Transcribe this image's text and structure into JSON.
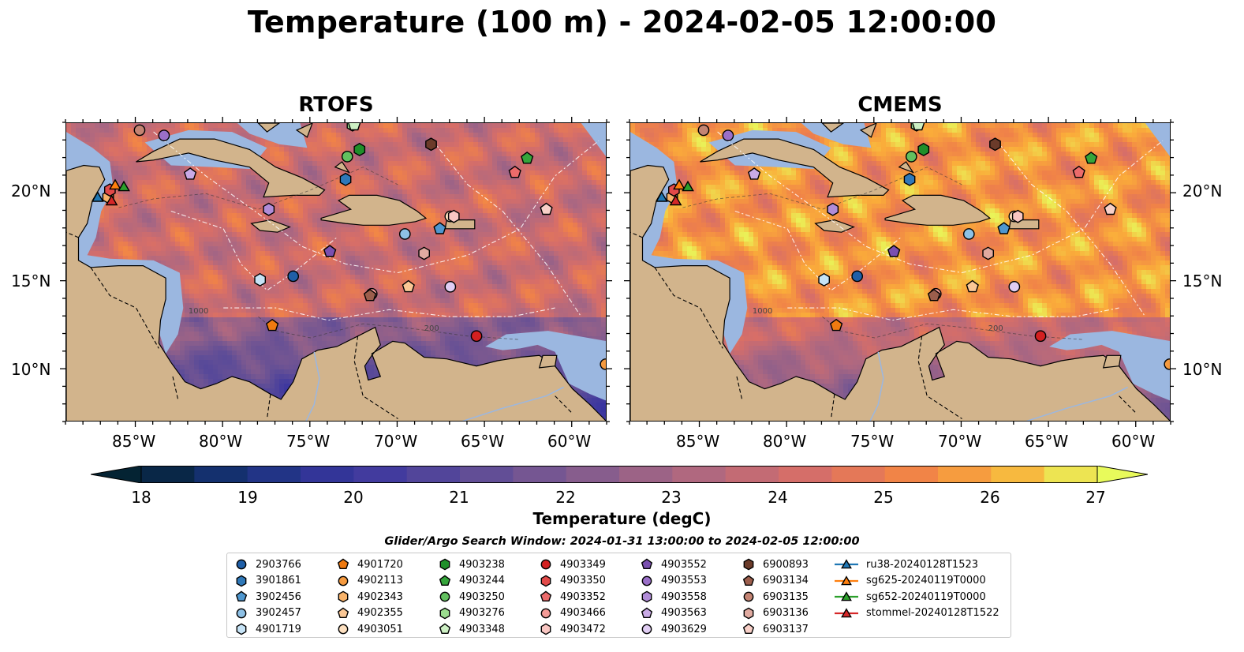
{
  "title": "Temperature (100 m) - 2024-02-05 12:00:00",
  "panels": [
    {
      "title": "RTOFS",
      "model": "rtofs"
    },
    {
      "title": "CMEMS",
      "model": "cmems"
    }
  ],
  "map": {
    "lon_range": [
      -89,
      -58
    ],
    "lat_range": [
      7,
      24
    ],
    "lat_ticks": [
      "20°N",
      "15°N",
      "10°N"
    ],
    "lon_ticks": [
      "85°W",
      "80°W",
      "75°W",
      "70°W",
      "65°W",
      "60°W"
    ],
    "land_color": "#d2b48c",
    "shelf_color": "#9bb7e0",
    "contour_labels": [
      "1000",
      "200"
    ]
  },
  "colorbar": {
    "label": "Temperature (degC)",
    "min": 18,
    "max": 27,
    "ticks": [
      "18",
      "19",
      "20",
      "21",
      "22",
      "23",
      "24",
      "25",
      "26",
      "27"
    ],
    "extend": "both",
    "colormap": "thermal"
  },
  "legend": {
    "title": "Glider/Argo Search Window: 2024-01-31 13:00:00 to 2024-02-05 12:00:00",
    "entries": [
      {
        "label": "2903766",
        "marker": "circle",
        "color": "#1f5fa8"
      },
      {
        "label": "3901861",
        "marker": "hexagon",
        "color": "#2f78b8"
      },
      {
        "label": "3902456",
        "marker": "pentagon",
        "color": "#4f97cf"
      },
      {
        "label": "3902457",
        "marker": "circle",
        "color": "#8ec1e6"
      },
      {
        "label": "4901719",
        "marker": "hexagon",
        "color": "#c6e3f6"
      },
      {
        "label": "4901720",
        "marker": "pentagon",
        "color": "#f07a10"
      },
      {
        "label": "4902113",
        "marker": "circle",
        "color": "#f59a3f"
      },
      {
        "label": "4902343",
        "marker": "hexagon",
        "color": "#f8b36a"
      },
      {
        "label": "4902355",
        "marker": "pentagon",
        "color": "#fac795"
      },
      {
        "label": "4903051",
        "marker": "circle",
        "color": "#fde0c0"
      },
      {
        "label": "4903238",
        "marker": "hexagon",
        "color": "#1f8f2a"
      },
      {
        "label": "4903244",
        "marker": "pentagon",
        "color": "#35a53b"
      },
      {
        "label": "4903250",
        "marker": "circle",
        "color": "#62c05f"
      },
      {
        "label": "4903276",
        "marker": "hexagon",
        "color": "#9bdc8f"
      },
      {
        "label": "4903348",
        "marker": "pentagon",
        "color": "#cdf0c4"
      },
      {
        "label": "4903349",
        "marker": "circle",
        "color": "#d42020"
      },
      {
        "label": "4903350",
        "marker": "hexagon",
        "color": "#e24a49"
      },
      {
        "label": "4903352",
        "marker": "pentagon",
        "color": "#ec6b6b"
      },
      {
        "label": "4903466",
        "marker": "circle",
        "color": "#f49b97"
      },
      {
        "label": "4903472",
        "marker": "hexagon",
        "color": "#f9c6c2"
      },
      {
        "label": "4903552",
        "marker": "pentagon",
        "color": "#7a4fb0"
      },
      {
        "label": "4903553",
        "marker": "circle",
        "color": "#9a6fc8"
      },
      {
        "label": "4903558",
        "marker": "hexagon",
        "color": "#b18cd8"
      },
      {
        "label": "4903563",
        "marker": "pentagon",
        "color": "#c9aae6"
      },
      {
        "label": "4903629",
        "marker": "circle",
        "color": "#e0cdf3"
      },
      {
        "label": "6900893",
        "marker": "hexagon",
        "color": "#6b3b2a"
      },
      {
        "label": "6903134",
        "marker": "pentagon",
        "color": "#9c5e4c"
      },
      {
        "label": "6903135",
        "marker": "circle",
        "color": "#c48473"
      },
      {
        "label": "6903136",
        "marker": "hexagon",
        "color": "#e0aaa0"
      },
      {
        "label": "6903137",
        "marker": "pentagon",
        "color": "#f8d0c8"
      },
      {
        "label": "ru38-20240128T1523",
        "marker": "triangle",
        "color": "#1f77b4"
      },
      {
        "label": "sg625-20240119T0000",
        "marker": "triangle",
        "color": "#ff7f0e"
      },
      {
        "label": "sg652-20240119T0000",
        "marker": "triangle",
        "color": "#2ca02c"
      },
      {
        "label": "stommel-20240128T1522",
        "marker": "triangle",
        "color": "#d62728"
      }
    ]
  },
  "map_markers": [
    {
      "label": "2903766",
      "lon": -76.0,
      "lat": 15.3
    },
    {
      "label": "3901861",
      "lon": -73.0,
      "lat": 20.8
    },
    {
      "label": "3902456",
      "lon": -67.6,
      "lat": 18.0
    },
    {
      "label": "3902457",
      "lon": -69.6,
      "lat": 17.7
    },
    {
      "label": "4901719",
      "lon": -77.9,
      "lat": 15.1
    },
    {
      "label": "4901720",
      "lon": -77.2,
      "lat": 12.5
    },
    {
      "label": "4902113",
      "lon": -58.1,
      "lat": 10.3
    },
    {
      "label": "4902343",
      "lon": -86.6,
      "lat": 19.8
    },
    {
      "label": "4902355",
      "lon": -69.4,
      "lat": 14.7
    },
    {
      "label": "4903051",
      "lon": -67.0,
      "lat": 18.7
    },
    {
      "label": "4903238",
      "lon": -72.2,
      "lat": 22.5
    },
    {
      "label": "4903244",
      "lon": -62.6,
      "lat": 22.0
    },
    {
      "label": "4903250",
      "lon": -72.9,
      "lat": 22.1
    },
    {
      "label": "4903276",
      "lon": -72.6,
      "lat": 23.9
    },
    {
      "label": "4903348",
      "lon": -72.5,
      "lat": 23.9
    },
    {
      "label": "4903349",
      "lon": -65.5,
      "lat": 11.9
    },
    {
      "label": "4903350",
      "lon": -86.5,
      "lat": 20.2
    },
    {
      "label": "4903352",
      "lon": -63.3,
      "lat": 21.2
    },
    {
      "label": "4903466",
      "lon": -71.5,
      "lat": 14.3
    },
    {
      "label": "4903472",
      "lon": -66.8,
      "lat": 18.7
    },
    {
      "label": "4903552",
      "lon": -73.9,
      "lat": 16.7
    },
    {
      "label": "4903553",
      "lon": -83.4,
      "lat": 23.3
    },
    {
      "label": "4903558",
      "lon": -77.4,
      "lat": 19.1
    },
    {
      "label": "4903563",
      "lon": -81.9,
      "lat": 21.1
    },
    {
      "label": "4903629",
      "lon": -67.0,
      "lat": 14.7
    },
    {
      "label": "6900893",
      "lon": -68.1,
      "lat": 22.8
    },
    {
      "label": "6903134",
      "lon": -71.6,
      "lat": 14.2
    },
    {
      "label": "6903135",
      "lon": -84.8,
      "lat": 23.6
    },
    {
      "label": "6903136",
      "lon": -68.5,
      "lat": 16.6
    },
    {
      "label": "6903137",
      "lon": -61.5,
      "lat": 19.1
    },
    {
      "label": "ru38-20240128T1523",
      "lon": -87.2,
      "lat": 19.8
    },
    {
      "label": "sg625-20240119T0000",
      "lon": -86.2,
      "lat": 20.5
    },
    {
      "label": "sg652-20240119T0000",
      "lon": -85.7,
      "lat": 20.4
    },
    {
      "label": "stommel-20240128T1522",
      "lon": -86.4,
      "lat": 19.6
    }
  ]
}
